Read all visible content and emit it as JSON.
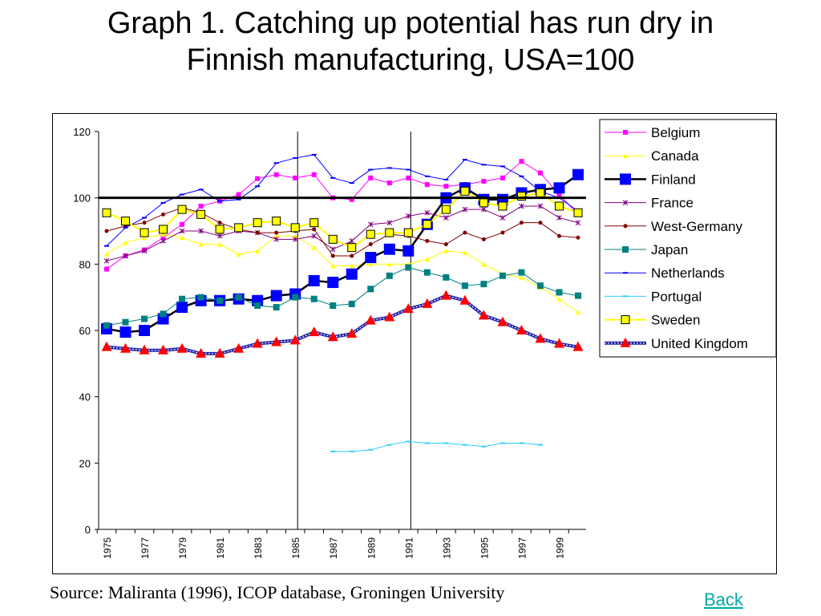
{
  "page": {
    "title_line1": "Graph 1. Catching up potential has run dry in",
    "title_line2": "Finnish manufacturing, USA=100",
    "source": "Source: Maliranta (1996), ICOP database, Groningen University",
    "back_link": "Back"
  },
  "chart_data": {
    "type": "line",
    "xlabel": "",
    "ylabel": "",
    "ylim": [
      0,
      120
    ],
    "yticks": [
      0,
      20,
      40,
      60,
      80,
      100,
      120
    ],
    "xlim": [
      1975,
      2000
    ],
    "xtick_labels": [
      "1975",
      "1977",
      "1979",
      "1981",
      "1983",
      "1985",
      "1987",
      "1989",
      "1991",
      "1993",
      "1995",
      "1997",
      "1999"
    ],
    "reference_line_y": 100,
    "vertical_lines_x": [
      1985,
      1991
    ],
    "legend_position": "top-right",
    "grid": false,
    "series": [
      {
        "name": "Belgium",
        "color": "#ff00ff",
        "marker": "square-small",
        "width": 1,
        "x": [
          1975,
          1976,
          1977,
          1978,
          1979,
          1980,
          1981,
          1982,
          1983,
          1984,
          1985,
          1986,
          1987,
          1988,
          1989,
          1990,
          1991,
          1992,
          1993,
          1994,
          1995,
          1996,
          1997,
          1998,
          1999,
          2000
        ],
        "y": [
          78.5,
          82.5,
          84.3,
          88,
          92,
          97.5,
          99,
          101,
          105.8,
          107,
          106,
          107,
          100,
          99.5,
          106,
          104.5,
          106,
          104,
          103.5,
          104,
          105,
          106,
          111,
          107.5,
          101,
          95
        ]
      },
      {
        "name": "Canada",
        "color": "#ffff00",
        "marker": "triangle-small",
        "width": 1,
        "x": [
          1975,
          1976,
          1977,
          1978,
          1979,
          1980,
          1981,
          1982,
          1983,
          1984,
          1985,
          1986,
          1987,
          1988,
          1989,
          1990,
          1991,
          1992,
          1993,
          1994,
          1995,
          1996,
          1997,
          1998,
          1999,
          2000
        ],
        "y": [
          83,
          86.5,
          88,
          89,
          88,
          86,
          86,
          83,
          84,
          88.5,
          88.5,
          85,
          79.5,
          79.5,
          80,
          80,
          80,
          81.5,
          84,
          83.5,
          80,
          77,
          76,
          73,
          69.5,
          65.5
        ]
      },
      {
        "name": "Finland",
        "color": "#0000ff",
        "line_color": "#000000",
        "marker": "square-large",
        "width": 2.5,
        "x": [
          1975,
          1976,
          1977,
          1978,
          1979,
          1980,
          1981,
          1982,
          1983,
          1984,
          1985,
          1986,
          1987,
          1988,
          1989,
          1990,
          1991,
          1992,
          1993,
          1994,
          1995,
          1996,
          1997,
          1998,
          1999,
          2000
        ],
        "y": [
          60.5,
          59.5,
          60,
          63.5,
          67,
          69,
          69,
          69.5,
          69,
          70.5,
          71,
          75,
          74.5,
          77,
          82,
          84.5,
          84,
          92,
          100,
          103,
          99.5,
          99.5,
          101.5,
          102.5,
          103,
          107
        ]
      },
      {
        "name": "France",
        "color": "#800080",
        "marker": "star",
        "width": 1,
        "x": [
          1975,
          1976,
          1977,
          1978,
          1979,
          1980,
          1981,
          1982,
          1983,
          1984,
          1985,
          1986,
          1987,
          1988,
          1989,
          1990,
          1991,
          1992,
          1993,
          1994,
          1995,
          1996,
          1997,
          1998,
          1999,
          2000
        ],
        "y": [
          81,
          82.5,
          84,
          87,
          90,
          90,
          88.5,
          90,
          89.5,
          87.5,
          87.5,
          88.5,
          84.5,
          87,
          92,
          92.5,
          94.5,
          95.5,
          94,
          96.5,
          96.5,
          94,
          97.5,
          97.5,
          94,
          92.5
        ]
      },
      {
        "name": "West-Germany",
        "color": "#800000",
        "marker": "circle",
        "width": 1,
        "x": [
          1975,
          1976,
          1977,
          1978,
          1979,
          1980,
          1981,
          1982,
          1983,
          1984,
          1985,
          1986,
          1987,
          1988,
          1989,
          1990,
          1991,
          1992,
          1993,
          1994,
          1995,
          1996,
          1997,
          1998,
          1999,
          2000
        ],
        "y": [
          90,
          91.5,
          92.5,
          95,
          97,
          95.5,
          92.5,
          90.5,
          89.5,
          89.5,
          90,
          90.5,
          82.5,
          82.5,
          86,
          89,
          88.5,
          87,
          86,
          89.5,
          87.5,
          89.5,
          92.5,
          92.5,
          88.5,
          88
        ]
      },
      {
        "name": "Japan",
        "color": "#008080",
        "marker": "square-medium",
        "width": 1,
        "x": [
          1975,
          1976,
          1977,
          1978,
          1979,
          1980,
          1981,
          1982,
          1983,
          1984,
          1985,
          1986,
          1987,
          1988,
          1989,
          1990,
          1991,
          1992,
          1993,
          1994,
          1995,
          1996,
          1997,
          1998,
          1999,
          2000
        ],
        "y": [
          61.5,
          62.5,
          63.5,
          65,
          69.5,
          70,
          69,
          70,
          67.5,
          67,
          70,
          69.5,
          67.5,
          68,
          72.5,
          76.5,
          79,
          77.5,
          76,
          73.5,
          74,
          76.5,
          77.5,
          73.5,
          71.5,
          70.5
        ]
      },
      {
        "name": "Netherlands",
        "color": "#0000ff",
        "marker": "dash",
        "width": 1,
        "x": [
          1975,
          1976,
          1977,
          1978,
          1979,
          1980,
          1981,
          1982,
          1983,
          1984,
          1985,
          1986,
          1987,
          1988,
          1989,
          1990,
          1991,
          1992,
          1993,
          1994,
          1995,
          1996,
          1997,
          1998,
          1999,
          2000
        ],
        "y": [
          85.5,
          91,
          94,
          98.5,
          101,
          102.5,
          99,
          99.5,
          103.5,
          110.5,
          112,
          113,
          106,
          104.5,
          108.5,
          109,
          108.5,
          106.5,
          105.5,
          111.5,
          110,
          109.5,
          106.5,
          102,
          100,
          96
        ]
      },
      {
        "name": "Portugal",
        "color": "#33ccff",
        "marker": "dash",
        "width": 1,
        "x": [
          1987,
          1988,
          1989,
          1990,
          1991,
          1992,
          1993,
          1994,
          1995,
          1996,
          1997,
          1998
        ],
        "y": [
          23.5,
          23.5,
          24,
          25.5,
          26.5,
          26,
          26,
          25.5,
          25,
          26,
          26,
          25.5
        ]
      },
      {
        "name": "Sweden",
        "color": "#ffff00",
        "marker": "square-yellow",
        "width": 2,
        "x": [
          1975,
          1976,
          1977,
          1978,
          1979,
          1980,
          1981,
          1982,
          1983,
          1984,
          1985,
          1986,
          1987,
          1988,
          1989,
          1990,
          1991,
          1992,
          1993,
          1994,
          1995,
          1996,
          1997,
          1998,
          1999,
          2000
        ],
        "y": [
          95.5,
          93,
          89.5,
          90.5,
          96.5,
          95,
          90.5,
          91,
          92.5,
          93,
          91,
          92.5,
          87.5,
          85,
          89,
          89.5,
          89.5,
          92,
          96.5,
          102,
          98.5,
          97.5,
          100.5,
          101.5,
          97.5,
          95.5
        ]
      },
      {
        "name": "United Kingdom",
        "color": "#ff0000",
        "line_color": "#2222aa",
        "marker": "triangle-large",
        "width": 2.5,
        "x": [
          1975,
          1976,
          1977,
          1978,
          1979,
          1980,
          1981,
          1982,
          1983,
          1984,
          1985,
          1986,
          1987,
          1988,
          1989,
          1990,
          1991,
          1992,
          1993,
          1994,
          1995,
          1996,
          1997,
          1998,
          1999,
          2000
        ],
        "y": [
          55,
          54.5,
          54,
          54,
          54.5,
          53,
          53,
          54.5,
          56,
          56.5,
          57,
          59.5,
          58,
          59,
          63,
          64,
          66.5,
          68,
          70.5,
          69,
          64.5,
          62.5,
          60,
          57.5,
          56,
          55
        ]
      }
    ]
  }
}
